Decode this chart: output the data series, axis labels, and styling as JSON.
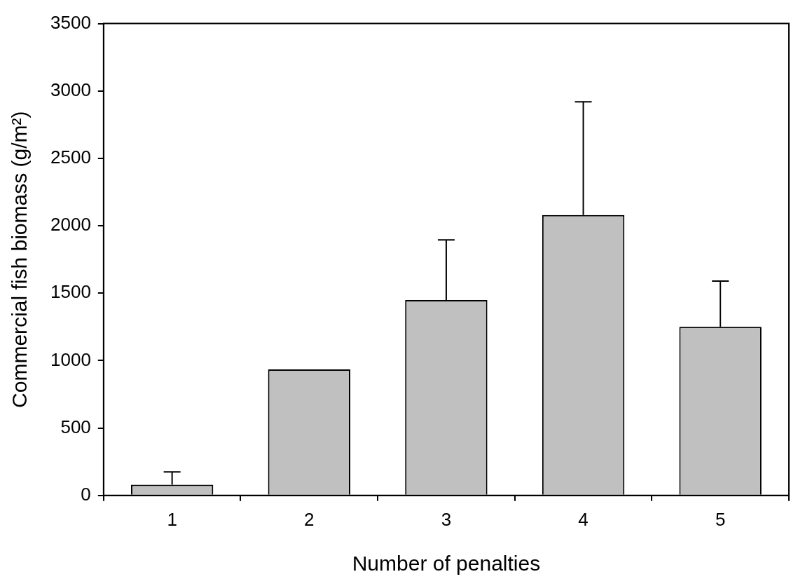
{
  "chart_data": {
    "type": "bar",
    "xlabel": "Number of penalties",
    "ylabel": "Commercial fish biomass (g/m²)",
    "categories": [
      "1",
      "2",
      "3",
      "4",
      "5"
    ],
    "values": [
      80,
      935,
      1450,
      2080,
      1250
    ],
    "errors": [
      [
        80,
        175
      ],
      null,
      [
        1450,
        1895
      ],
      [
        2080,
        2920
      ],
      [
        1250,
        1590
      ]
    ],
    "color": "#c0c0c0",
    "ylim": [
      0,
      3500
    ],
    "yticks": [
      0,
      500,
      1000,
      1500,
      2000,
      2500,
      3000,
      3500
    ],
    "grid": false
  }
}
